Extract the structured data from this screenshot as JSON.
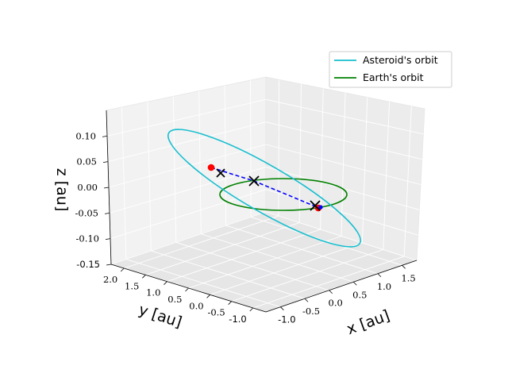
{
  "chart_data": {
    "type": "3d-line",
    "title": "",
    "xlabel": "x [au]",
    "ylabel": "y [au]",
    "zlabel": "z [au]",
    "xlim": [
      -1.3,
      1.8
    ],
    "ylim": [
      -1.3,
      2.3
    ],
    "zlim": [
      -0.15,
      0.15
    ],
    "x_ticks": [
      {
        "value": -1.0,
        "label": "-1.0",
        "font": "sans"
      },
      {
        "value": -0.5,
        "label": "-0.5",
        "font": "serif"
      },
      {
        "value": 0.0,
        "label": "0.0",
        "font": "serif"
      },
      {
        "value": 0.5,
        "label": "0.5",
        "font": "serif"
      },
      {
        "value": 1.0,
        "label": "1.0",
        "font": "serif"
      },
      {
        "value": 1.5,
        "label": "1.5",
        "font": "serif"
      }
    ],
    "y_ticks": [
      {
        "value": -1.0,
        "label": "-1.0",
        "font": "sans"
      },
      {
        "value": -0.5,
        "label": "-0.5",
        "font": "serif"
      },
      {
        "value": 0.0,
        "label": "0.0",
        "font": "serif"
      },
      {
        "value": 0.5,
        "label": "0.5",
        "font": "serif"
      },
      {
        "value": 1.0,
        "label": "1.0",
        "font": "serif"
      },
      {
        "value": 1.5,
        "label": "1.5",
        "font": "serif"
      },
      {
        "value": 2.0,
        "label": "2.0",
        "font": "serif"
      }
    ],
    "z_ticks": [
      {
        "value": -0.15,
        "label": "-0.15",
        "font": "sans"
      },
      {
        "value": -0.1,
        "label": "-0.10",
        "font": "serif"
      },
      {
        "value": -0.05,
        "label": "-0.05",
        "font": "serif"
      },
      {
        "value": 0.0,
        "label": "0.00",
        "font": "serif"
      },
      {
        "value": 0.05,
        "label": "0.05",
        "font": "serif"
      },
      {
        "value": 0.1,
        "label": "0.10",
        "font": "serif"
      }
    ],
    "series": [
      {
        "name": "Asteroid's orbit",
        "color": "#17becf",
        "kind": "ellipse",
        "samples": [
          [
            -1.0,
            2.0,
            0.13
          ],
          [
            0.0,
            1.1,
            0.08
          ],
          [
            1.05,
            0.1,
            -0.02
          ],
          [
            1.6,
            -0.6,
            -0.12
          ],
          [
            1.0,
            -0.4,
            -0.14
          ],
          [
            -0.2,
            0.5,
            -0.05
          ],
          [
            -1.1,
            1.4,
            0.05
          ]
        ]
      },
      {
        "name": "Earth's orbit",
        "color": "#008000",
        "kind": "circle",
        "center": [
          0.3,
          0.6,
          0.0
        ],
        "radius": 1.0
      }
    ],
    "points": {
      "red_dots": [
        [
          -0.5,
          1.8,
          0.05
        ],
        [
          0.83,
          0.7,
          -0.03
        ]
      ],
      "crosses": [
        [
          -0.35,
          1.6,
          0.03
        ],
        [
          0.05,
          1.2,
          0.01
        ],
        [
          0.8,
          0.72,
          -0.02
        ]
      ],
      "dashed_line": [
        [
          -0.5,
          1.8,
          0.05
        ],
        [
          0.83,
          0.7,
          -0.03
        ]
      ]
    },
    "legend": {
      "location": "top-right",
      "entries": [
        {
          "label": "Asteroid's orbit",
          "color": "#17becf"
        },
        {
          "label": "Earth's orbit",
          "color": "#008000"
        }
      ]
    },
    "grid": true
  }
}
